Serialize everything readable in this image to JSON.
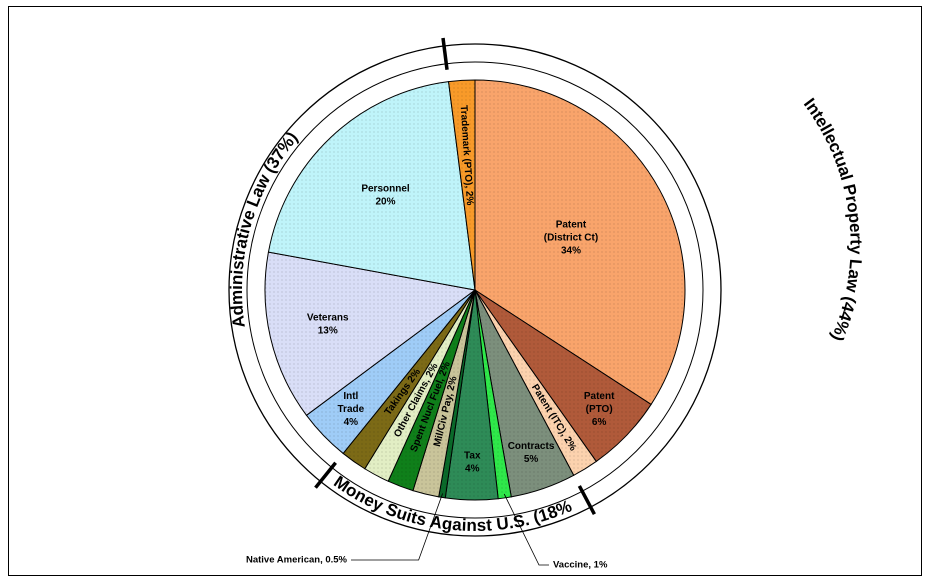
{
  "chart_data": {
    "type": "pie",
    "title": "",
    "slices": [
      {
        "label": "Patent (District Ct)",
        "display": [
          "Patent",
          "(District Ct)",
          "34%"
        ],
        "value": 34,
        "color": "#f9a46b"
      },
      {
        "label": "Patent (PTO)",
        "display": [
          "Patent",
          "(PTO)",
          "6%"
        ],
        "value": 6,
        "color": "#b05a3a"
      },
      {
        "label": "Patent (ITC)",
        "display": [
          "Patent (ITC), 2%"
        ],
        "value": 2,
        "color": "#fcd2ae"
      },
      {
        "label": "Contracts",
        "display": [
          "Contracts",
          "5%"
        ],
        "value": 5,
        "color": "#7c8f7c"
      },
      {
        "label": "Vaccine",
        "display": [],
        "value": 1,
        "color": "#2fe84a"
      },
      {
        "label": "Tax",
        "display": [
          "Tax",
          "4%"
        ],
        "value": 4,
        "color": "#2e8b57"
      },
      {
        "label": "Native American",
        "display": [],
        "value": 0.5,
        "color": "#0a6a2a"
      },
      {
        "label": "Mil/Civ Pay",
        "display": [
          "Mil/Civ Pay, 2%"
        ],
        "value": 2,
        "color": "#c9c49a"
      },
      {
        "label": "Spent Nucl Fuel",
        "display": [
          "Spent Nucl Fuel, 2%"
        ],
        "value": 2,
        "color": "#0f7f1a"
      },
      {
        "label": "Other Claims",
        "display": [
          "Other Claims, 2%"
        ],
        "value": 2,
        "color": "#e2eec4"
      },
      {
        "label": "Takings",
        "display": [
          "Takings 2%"
        ],
        "value": 2,
        "color": "#7c6a16"
      },
      {
        "label": "Intl Trade",
        "display": [
          "Intl",
          "Trade",
          "4%"
        ],
        "value": 4,
        "color": "#9fccf7"
      },
      {
        "label": "Veterans",
        "display": [
          "Veterans",
          "13%"
        ],
        "value": 13,
        "color": "#d9def7"
      },
      {
        "label": "Personnel",
        "display": [
          "Personnel",
          "20%"
        ],
        "value": 20,
        "color": "#bff4fa"
      },
      {
        "label": "Trademark (PTO)",
        "display": [
          "Trademark (PTO), 2%"
        ],
        "value": 2,
        "color": "#f89a29"
      }
    ],
    "groups": [
      {
        "label": "Intellectual Property Law (44%)",
        "value": 44
      },
      {
        "label": "Money Suits Against U.S. (18%)",
        "value": 18
      },
      {
        "label": "Administrative Law (37%)",
        "value": 37
      }
    ],
    "callouts": [
      {
        "slice": "Native American",
        "text": "Native American, 0.5%"
      },
      {
        "slice": "Vaccine",
        "text": "Vaccine, 1%"
      }
    ]
  }
}
